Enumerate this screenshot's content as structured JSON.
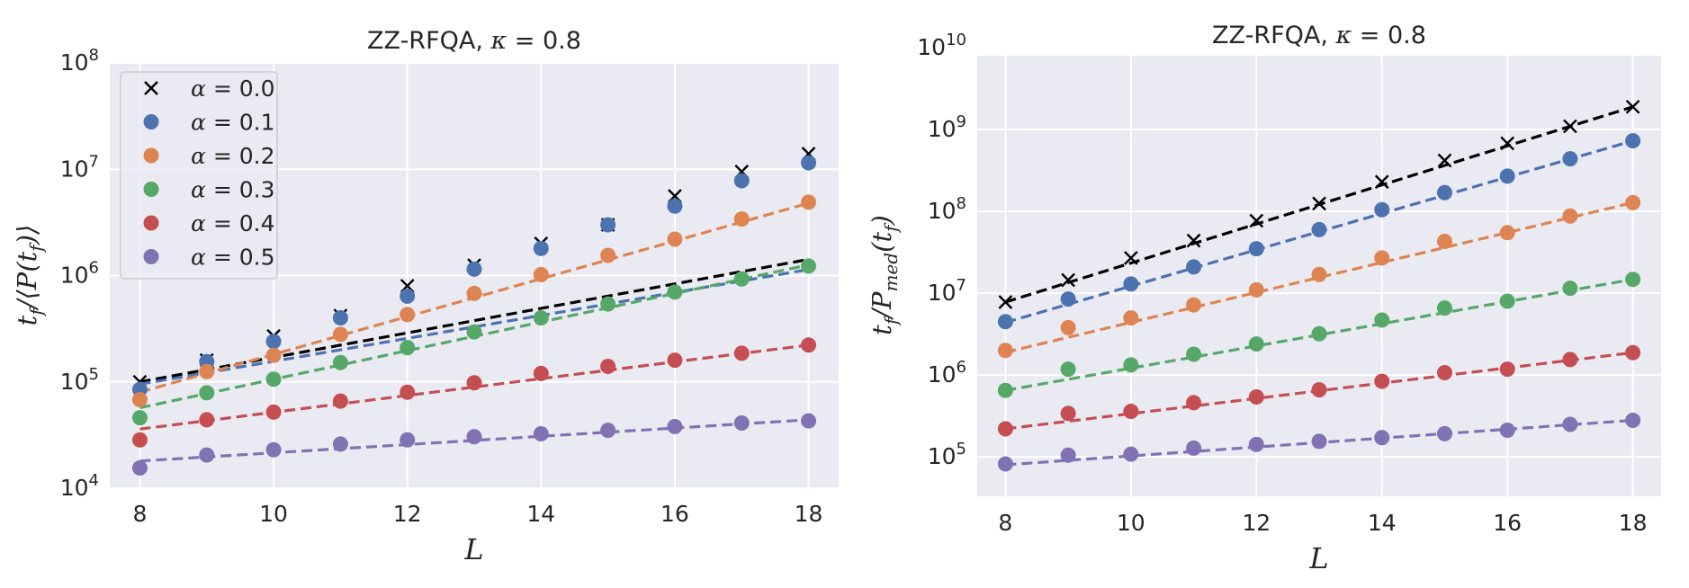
{
  "chart_data": [
    {
      "type": "scatter",
      "title": "ZZ-RFQA, κ = 0.8",
      "xlabel": "L",
      "ylabel": "t_f/⟨P(t_f)⟩",
      "yscale": "log",
      "xlim": [
        7.55,
        18.45
      ],
      "ylim": [
        10000,
        100000000
      ],
      "xticks": [
        8,
        10,
        12,
        14,
        16,
        18
      ],
      "yticks": [
        {
          "value": 10000,
          "exp": "4"
        },
        {
          "value": 100000,
          "exp": "5"
        },
        {
          "value": 1000000,
          "exp": "6"
        },
        {
          "value": 10000000,
          "exp": "7"
        },
        {
          "value": 100000000,
          "exp": "8"
        }
      ],
      "legend": "upper-left",
      "x": [
        8,
        9,
        10,
        11,
        12,
        13,
        14,
        15,
        16,
        17,
        18
      ],
      "series": [
        {
          "name": "α = 0.0",
          "color": "#000000",
          "marker": "x",
          "values": [
            100000,
            160000,
            270000,
            420000,
            800000,
            1250000,
            2000000,
            3000000,
            5600000,
            9500000,
            14000000
          ],
          "fit": [
            100000,
            1420000
          ]
        },
        {
          "name": "α = 0.1",
          "color": "#4c72b0",
          "marker": "o",
          "values": [
            85000,
            155000,
            240000,
            400000,
            640000,
            1150000,
            1800000,
            3000000,
            4500000,
            7800000,
            11500000
          ],
          "fit": [
            95000,
            1140000
          ]
        },
        {
          "name": "α = 0.2",
          "color": "#dd8452",
          "marker": "o",
          "values": [
            68000,
            125000,
            178000,
            280000,
            430000,
            680000,
            1020000,
            1550000,
            2200000,
            3400000,
            4900000
          ],
          "fit": [
            80000,
            4800000
          ]
        },
        {
          "name": "α = 0.3",
          "color": "#55a868",
          "marker": "o",
          "values": [
            46000,
            79000,
            106000,
            152000,
            210000,
            295000,
            400000,
            540000,
            700000,
            930000,
            1230000
          ],
          "fit": [
            57000,
            1260000
          ]
        },
        {
          "name": "α = 0.4",
          "color": "#c44e52",
          "marker": "o",
          "values": [
            28500,
            44000,
            52000,
            66000,
            80000,
            98000,
            120000,
            140000,
            160000,
            186000,
            222000
          ],
          "fit": [
            36000,
            222000
          ]
        },
        {
          "name": "α = 0.5",
          "color": "#8172b3",
          "marker": "o",
          "values": [
            15500,
            20500,
            23000,
            26000,
            28500,
            30500,
            32500,
            35000,
            38000,
            41000,
            43000
          ],
          "fit": [
            18000,
            44000
          ]
        }
      ]
    },
    {
      "type": "scatter",
      "title": "ZZ-RFQA, κ = 0.8",
      "xlabel": "L",
      "ylabel": "t_f/P_med(t_f)",
      "yscale": "log",
      "xlim": [
        7.55,
        18.45
      ],
      "ylim": [
        33000,
        8000000000
      ],
      "xticks": [
        8,
        10,
        12,
        14,
        16,
        18
      ],
      "yticks": [
        {
          "value": 100000,
          "exp": "5"
        },
        {
          "value": 1000000,
          "exp": "6"
        },
        {
          "value": 10000000,
          "exp": "7"
        },
        {
          "value": 100000000,
          "exp": "8"
        },
        {
          "value": 1000000000,
          "exp": "9"
        },
        {
          "value": 10000000000,
          "exp": "10"
        }
      ],
      "x": [
        8,
        9,
        10,
        11,
        12,
        13,
        14,
        15,
        16,
        17,
        18
      ],
      "series": [
        {
          "name": "α = 0.0",
          "color": "#000000",
          "marker": "x",
          "values": [
            7800000,
            14500000,
            27000000,
            44000000,
            77000000,
            125000000,
            230000000,
            420000000,
            680000000,
            1100000000,
            1900000000
          ],
          "fit": [
            7800000,
            1900000000
          ]
        },
        {
          "name": "α = 0.1",
          "color": "#4c72b0",
          "marker": "o",
          "values": [
            4500000,
            8500000,
            13000000,
            21000000,
            35000000,
            60000000,
            105000000,
            170000000,
            270000000,
            440000000,
            730000000
          ],
          "fit": [
            4400000,
            730000000
          ]
        },
        {
          "name": "α = 0.2",
          "color": "#dd8452",
          "marker": "o",
          "values": [
            2000000,
            3800000,
            5000000,
            7200000,
            11000000,
            17000000,
            27000000,
            43000000,
            55000000,
            88000000,
            128000000
          ],
          "fit": [
            1900000,
            128000000
          ]
        },
        {
          "name": "α = 0.3",
          "color": "#55a868",
          "marker": "o",
          "values": [
            650000,
            1180000,
            1330000,
            1800000,
            2400000,
            3200000,
            4700000,
            6600000,
            8000000,
            11500000,
            14800000
          ],
          "fit": [
            650000,
            14800000
          ]
        },
        {
          "name": "α = 0.4",
          "color": "#c44e52",
          "marker": "o",
          "values": [
            220000,
            340000,
            360000,
            460000,
            540000,
            660000,
            840000,
            1070000,
            1180000,
            1550000,
            1880000
          ],
          "fit": [
            220000,
            1880000
          ]
        },
        {
          "name": "α = 0.5",
          "color": "#8172b3",
          "marker": "o",
          "values": [
            82000,
            105000,
            108000,
            128000,
            142000,
            155000,
            172000,
            192000,
            212000,
            250000,
            280000
          ],
          "fit": [
            80000,
            280000
          ]
        }
      ]
    }
  ]
}
